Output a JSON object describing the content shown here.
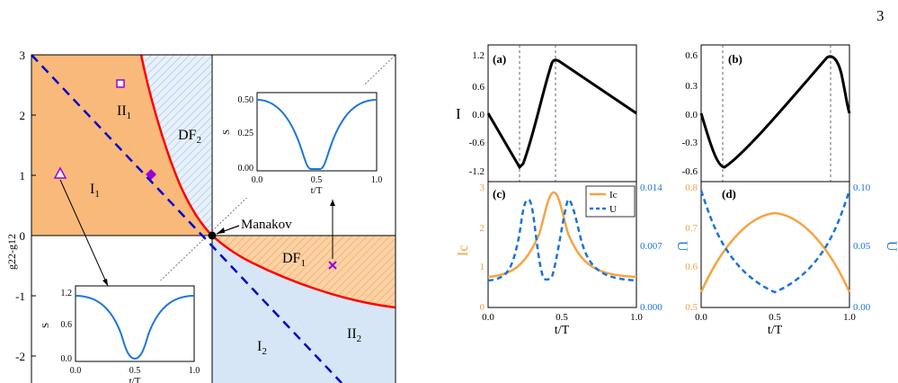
{
  "page_number": "3",
  "colors": {
    "orange_region": "#f8b97a",
    "blue_region": "#d7e6f6",
    "red_boundary": "#ff0000",
    "blue_dashed": "#0000cc",
    "curve_blue": "#1f77d4",
    "black_curve": "#000000",
    "orange_curve": "#f5a443",
    "purple_marker": "#9b00d9",
    "axis_blue_text": "#1a73d9",
    "axis_orange_text": "#f0a040"
  },
  "phase_diagram": {
    "ylabel": "g22-g12",
    "yticks": [
      "3",
      "2",
      "1",
      "0",
      "-1",
      "-2"
    ],
    "regions": [
      "II",
      "DF",
      "I",
      "DF",
      "I",
      "II"
    ],
    "region_subscripts": [
      "1",
      "2",
      "1",
      "1",
      "2",
      "2"
    ],
    "point_label": "Manakov",
    "inset_top": {
      "ylabel": "S",
      "yticks": [
        "0.50",
        "0.25",
        "0.00"
      ],
      "xticks": [
        "0.0",
        "0.5",
        "1.0"
      ],
      "xlabel": "t/T"
    },
    "inset_bottom": {
      "ylabel": "S",
      "yticks": [
        "1.2",
        "0.6",
        "0.0"
      ],
      "xticks": [
        "0.0",
        "0.5",
        "1.0"
      ],
      "xlabel": "t/T"
    }
  },
  "panels": {
    "a": {
      "label": "(a)",
      "ylabel": "I",
      "yticks": [
        "1.2",
        "0.6",
        "0.0",
        "-0.6",
        "-1.2"
      ]
    },
    "b": {
      "label": "(b)",
      "yticks": [
        "0.6",
        "0.3",
        "0.0",
        "-0.3",
        "-0.6"
      ]
    },
    "c": {
      "label": "(c)",
      "ylabel_left": "Ic",
      "ylabel_right": "U",
      "yticks_left": [
        "3",
        "2",
        "1",
        "0"
      ],
      "yticks_right": [
        "0.014",
        "0.007",
        "0.000"
      ],
      "xticks": [
        "0.0",
        "0.5",
        "1.0"
      ],
      "xlabel": "t/T",
      "legend": [
        "Ic",
        "U"
      ]
    },
    "d": {
      "label": "(d)",
      "yticks_left": [
        "0.8",
        "0.7",
        "0.6",
        "0.5"
      ],
      "yticks_right": [
        "0.10",
        "0.05",
        "0.00"
      ],
      "ylabel_right": "U",
      "xticks": [
        "0.0",
        "0.5",
        "1.0"
      ],
      "xlabel": "t/T"
    }
  }
}
